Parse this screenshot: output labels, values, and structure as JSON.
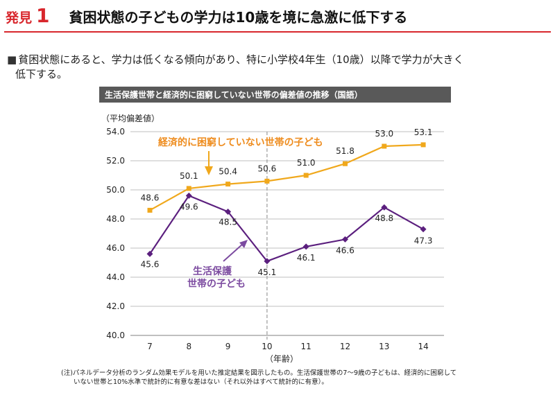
{
  "heading": {
    "prefix": "発見",
    "number": "1",
    "title": "貧困状態の子どもの学力は10歳を境に急激に低下する"
  },
  "lead": {
    "bullet": "■",
    "line1": "貧困状態にあると、学力は低くなる傾向があり、特に小学校4年生（10歳）以降で学力が大きく",
    "line2": "低下する。"
  },
  "colors": {
    "accent_red": "#d8262c",
    "header_bar": "#595959",
    "series_non_poor": "#f0a81c",
    "series_welfare": "#5b1f7e",
    "label_non_poor": "#ee8c1e",
    "label_welfare": "#7c4ba0",
    "divider": "#999999"
  },
  "chart_data": {
    "type": "line",
    "title": "生活保護世帯と経済的に困窮していない世帯の偏差値の推移（国語）",
    "ylabel": "（平均偏差値）",
    "xlabel": "（年齢）",
    "x": [
      7,
      8,
      9,
      10,
      11,
      12,
      13,
      14
    ],
    "x_tick_labels": [
      "7",
      "8",
      "9",
      "10",
      "11",
      "12",
      "13",
      "14"
    ],
    "ylim": [
      40.0,
      54.0
    ],
    "y_ticks": [
      40.0,
      42.0,
      44.0,
      46.0,
      48.0,
      50.0,
      52.0,
      54.0
    ],
    "y_tick_labels": [
      "40.0",
      "42.0",
      "44.0",
      "46.0",
      "48.0",
      "50.0",
      "52.0",
      "54.0"
    ],
    "grid": true,
    "divider_x": 10,
    "series": [
      {
        "name": "経済的に困窮していない世帯の子ども",
        "values": [
          48.6,
          50.1,
          50.4,
          50.6,
          51.0,
          51.8,
          53.0,
          53.1
        ],
        "value_labels": [
          "48.6",
          "50.1",
          "50.4",
          "50.6",
          "51.0",
          "51.8",
          "53.0",
          "53.1"
        ],
        "marker": "square"
      },
      {
        "name_lines": [
          "生活保護",
          "世帯の子ども"
        ],
        "values": [
          45.6,
          49.6,
          48.5,
          45.1,
          46.1,
          46.6,
          48.8,
          47.3
        ],
        "value_labels": [
          "45.6",
          "49.6",
          "48.5",
          "45.1",
          "46.1",
          "46.6",
          "48.8",
          "47.3"
        ],
        "marker": "diamond"
      }
    ]
  },
  "note": {
    "line1": "(注)パネルデータ分析のランダム効果モデルを用いた推定結果を図示したもの。生活保護世帯の7～9歳の子どもは、経済的に困窮して",
    "line2": "いない世帯と10%水準で統計的に有意な差はない（それ以外はすべて統計的に有意）。"
  }
}
